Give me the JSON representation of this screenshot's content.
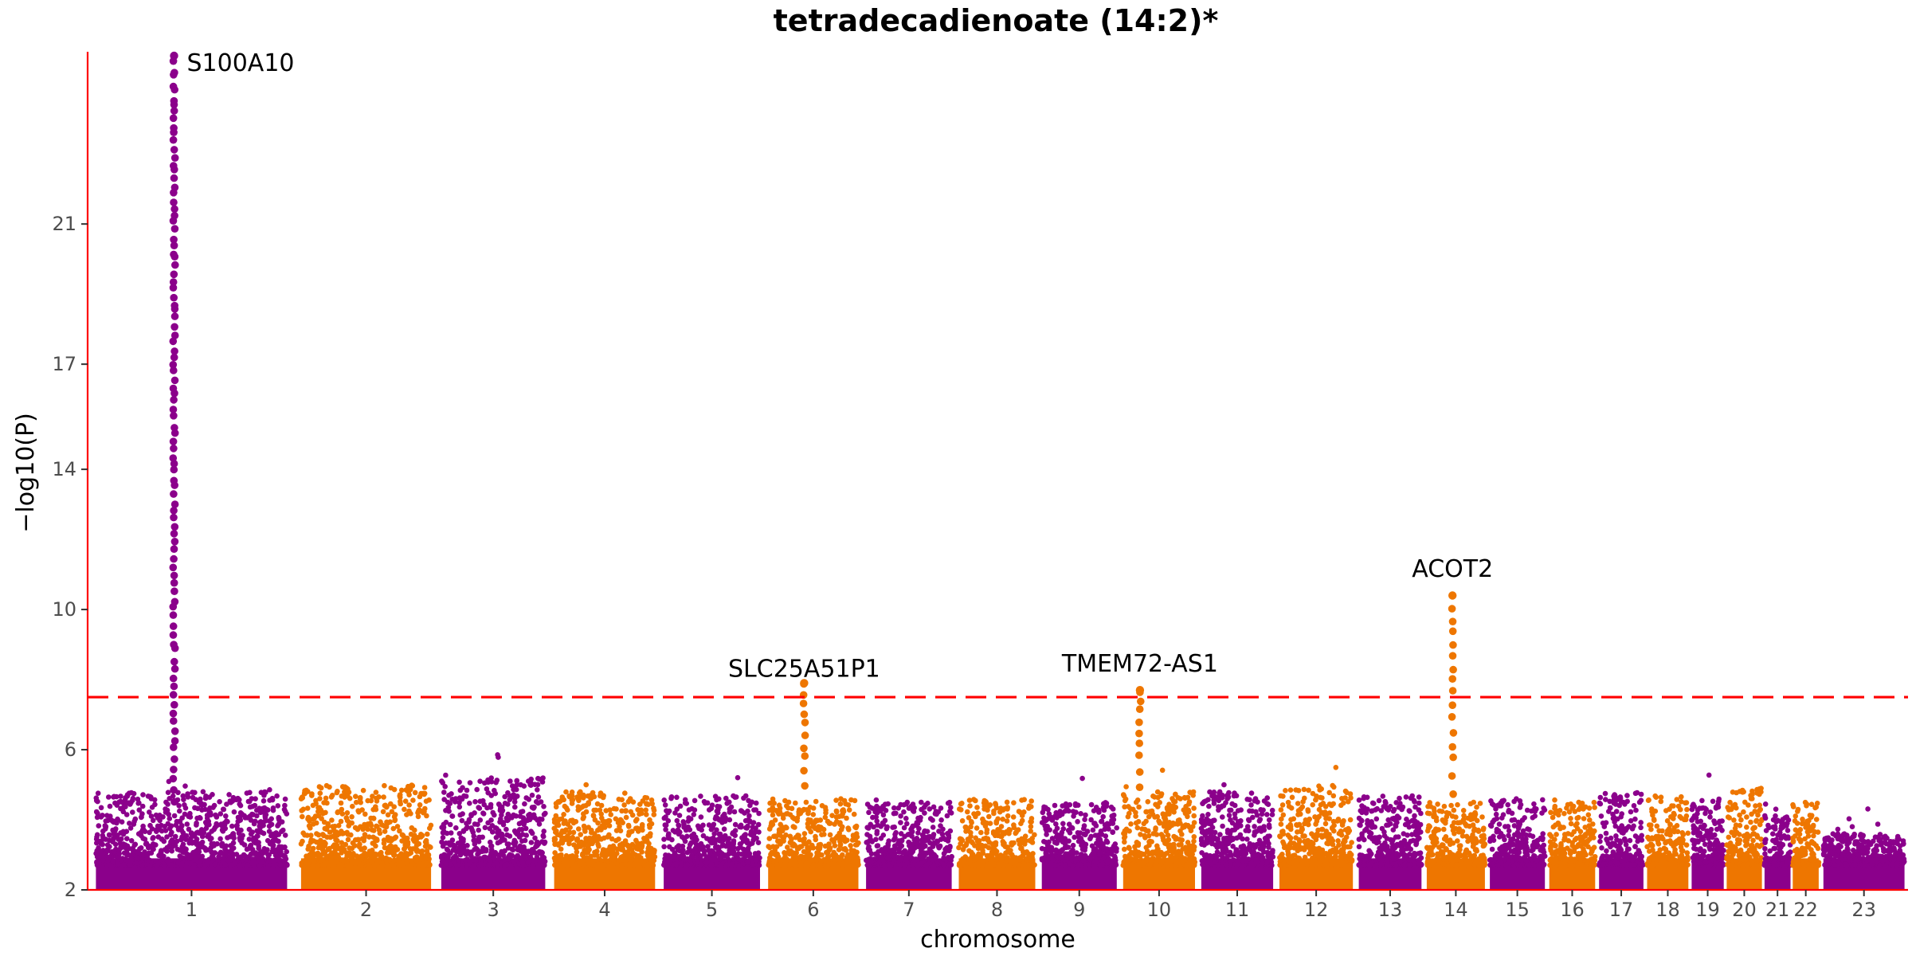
{
  "chart_data": {
    "type": "scatter",
    "subtype": "manhattan",
    "title": "tetradecadienoate (14:2)*",
    "xlabel": "chromosome",
    "ylabel": "−log10(P)",
    "ylim": [
      2,
      25.8
    ],
    "yticks": [
      2,
      6,
      10,
      14,
      17,
      21
    ],
    "significance_threshold": 7.5,
    "grid": false,
    "colors": {
      "odd": "#8B008B",
      "even": "#EE7600",
      "threshold": "#FF0000",
      "axis": "#FF0000"
    },
    "chromosomes": [
      {
        "label": "1",
        "span": [
          0,
          1.25
        ],
        "bg_max": 4.8,
        "color": "purple"
      },
      {
        "label": "2",
        "span": [
          1.25,
          2.1
        ],
        "bg_max": 5.0,
        "color": "orange"
      },
      {
        "label": "3",
        "span": [
          2.1,
          2.78
        ],
        "bg_max": 5.2,
        "color": "purple"
      },
      {
        "label": "4",
        "span": [
          2.78,
          3.44
        ],
        "bg_max": 4.8,
        "color": "orange"
      },
      {
        "label": "5",
        "span": [
          3.44,
          4.07
        ],
        "bg_max": 4.7,
        "color": "purple"
      },
      {
        "label": "6",
        "span": [
          4.07,
          4.66
        ],
        "bg_max": 4.6,
        "color": "orange"
      },
      {
        "label": "7",
        "span": [
          4.66,
          5.22
        ],
        "bg_max": 4.5,
        "color": "purple"
      },
      {
        "label": "8",
        "span": [
          5.22,
          5.72
        ],
        "bg_max": 4.6,
        "color": "orange"
      },
      {
        "label": "9",
        "span": [
          5.72,
          6.21
        ],
        "bg_max": 4.5,
        "color": "purple"
      },
      {
        "label": "10",
        "span": [
          6.21,
          6.68
        ],
        "bg_max": 4.8,
        "color": "orange"
      },
      {
        "label": "11",
        "span": [
          6.68,
          7.15
        ],
        "bg_max": 4.8,
        "color": "purple"
      },
      {
        "label": "12",
        "span": [
          7.15,
          7.63
        ],
        "bg_max": 5.0,
        "color": "orange"
      },
      {
        "label": "13",
        "span": [
          7.63,
          8.04
        ],
        "bg_max": 4.7,
        "color": "purple"
      },
      {
        "label": "14",
        "span": [
          8.04,
          8.42
        ],
        "bg_max": 4.5,
        "color": "orange"
      },
      {
        "label": "15",
        "span": [
          8.42,
          8.78
        ],
        "bg_max": 4.6,
        "color": "purple"
      },
      {
        "label": "16",
        "span": [
          8.78,
          9.08
        ],
        "bg_max": 4.5,
        "color": "orange"
      },
      {
        "label": "17",
        "span": [
          9.08,
          9.37
        ],
        "bg_max": 4.8,
        "color": "purple"
      },
      {
        "label": "18",
        "span": [
          9.37,
          9.64
        ],
        "bg_max": 4.7,
        "color": "orange"
      },
      {
        "label": "19",
        "span": [
          9.64,
          9.85
        ],
        "bg_max": 4.6,
        "color": "purple"
      },
      {
        "label": "20",
        "span": [
          9.85,
          10.08
        ],
        "bg_max": 4.9,
        "color": "orange"
      },
      {
        "label": "21",
        "span": [
          10.08,
          10.25
        ],
        "bg_max": 4.2,
        "color": "purple"
      },
      {
        "label": "22",
        "span": [
          10.25,
          10.42
        ],
        "bg_max": 4.5,
        "color": "orange"
      },
      {
        "label": "23",
        "span": [
          10.42,
          10.95
        ],
        "bg_max": 3.6,
        "color": "purple"
      }
    ],
    "xrange": [
      0,
      10.95
    ],
    "peaks": [
      {
        "chrom": "1",
        "x": 0.52,
        "min": 4.5,
        "max": 25.8,
        "n": 95,
        "color": "purple"
      },
      {
        "chrom": "6",
        "x": 4.31,
        "min": 5.0,
        "max": 7.9,
        "n": 10,
        "color": "orange"
      },
      {
        "chrom": "10",
        "x": 6.33,
        "min": 5.0,
        "max": 7.7,
        "n": 9,
        "color": "orange"
      },
      {
        "chrom": "14",
        "x": 8.21,
        "min": 4.8,
        "max": 10.4,
        "n": 16,
        "color": "orange"
      }
    ],
    "annotations": [
      {
        "text": "S100A10",
        "x": 0.52,
        "y": 25.6,
        "align": "left"
      },
      {
        "text": "SLC25A51P1",
        "x": 4.31,
        "y": 7.9,
        "align": "middle"
      },
      {
        "text": "TMEM72-AS1",
        "x": 6.33,
        "y": 8.05,
        "align": "middle"
      },
      {
        "text": "ACOT2",
        "x": 8.21,
        "y": 10.75,
        "align": "middle"
      }
    ]
  }
}
